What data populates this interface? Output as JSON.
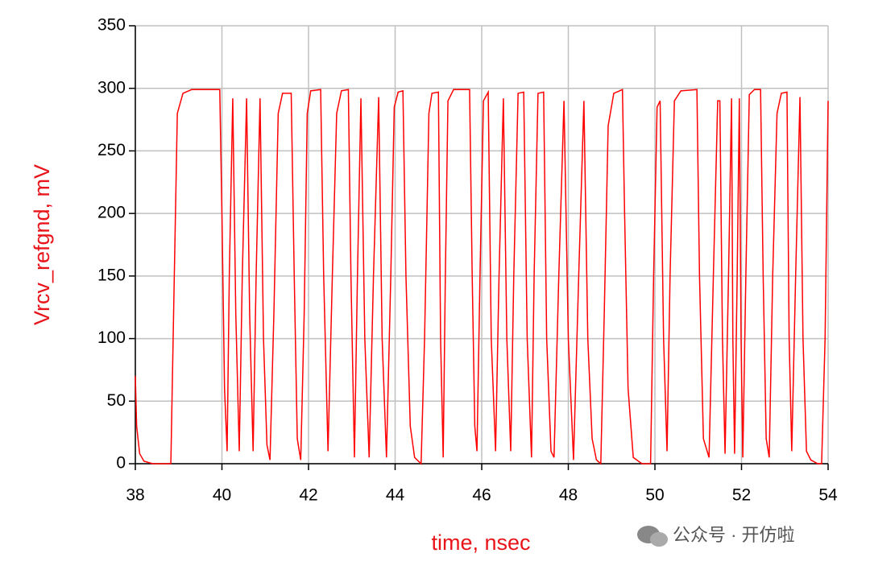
{
  "chart_data": {
    "type": "line",
    "xlabel": "time, nsec",
    "ylabel": "Vrcv_refgnd, mV",
    "watermark": "公众号 · 开仿啦",
    "xlim": [
      38,
      54
    ],
    "xticks": [
      38,
      40,
      42,
      44,
      46,
      48,
      50,
      52,
      54
    ],
    "ylim": [
      0,
      350
    ],
    "yticks": [
      0,
      50,
      100,
      150,
      200,
      250,
      300,
      350
    ],
    "grid": true,
    "series": [
      {
        "color": "#ff0000",
        "x": [
          38,
          38.03,
          38.1,
          38.2,
          38.4,
          38.82,
          38.9,
          38.97,
          39.1,
          39.3,
          39.95,
          40.0,
          40.06,
          40.12,
          40.17,
          40.25,
          40.32,
          40.4,
          40.47,
          40.57,
          40.64,
          40.72,
          40.79,
          40.88,
          40.96,
          41.04,
          41.11,
          41.2,
          41.3,
          41.4,
          41.6,
          41.67,
          41.74,
          41.82,
          41.9,
          41.97,
          42.05,
          42.28,
          42.35,
          42.45,
          42.55,
          42.65,
          42.76,
          42.92,
          42.98,
          43.06,
          43.13,
          43.21,
          43.3,
          43.4,
          43.5,
          43.62,
          43.7,
          43.8,
          43.9,
          43.98,
          44.07,
          44.18,
          44.25,
          44.35,
          44.45,
          44.6,
          44.68,
          44.78,
          44.85,
          45.0,
          45.05,
          45.11,
          45.16,
          45.22,
          45.35,
          45.72,
          45.78,
          45.84,
          45.89,
          45.96,
          46.04,
          46.15,
          46.22,
          46.32,
          46.4,
          46.5,
          46.58,
          46.67,
          46.74,
          46.84,
          46.97,
          47.05,
          47.15,
          47.21,
          47.3,
          47.43,
          47.5,
          47.6,
          47.67,
          47.78,
          47.9,
          48.0,
          48.12,
          48.24,
          48.36,
          48.45,
          48.55,
          48.65,
          48.75,
          48.83,
          48.92,
          49.05,
          49.25,
          49.3,
          49.38,
          49.5,
          49.7,
          49.9,
          49.97,
          50.05,
          50.12,
          50.2,
          50.28,
          50.35,
          50.45,
          50.6,
          50.97,
          51.03,
          51.12,
          51.25,
          51.35,
          51.45,
          51.5,
          51.56,
          51.62,
          51.7,
          51.77,
          51.8,
          51.84,
          51.9,
          51.95,
          51.99,
          52.03,
          52.1,
          52.18,
          52.3,
          52.44,
          52.5,
          52.57,
          52.64,
          52.72,
          52.82,
          52.92,
          53.05,
          53.1,
          53.16,
          53.25,
          53.35,
          53.42,
          53.5,
          53.6,
          53.76,
          53.85,
          53.93,
          54.0
        ],
        "values": [
          70,
          30,
          8,
          2,
          0,
          0,
          150,
          280,
          296,
          299,
          299,
          200,
          60,
          10,
          150,
          292,
          120,
          10,
          150,
          292,
          120,
          10,
          150,
          292,
          100,
          15,
          3,
          120,
          280,
          296,
          296,
          150,
          20,
          3,
          120,
          280,
          298,
          299,
          150,
          10,
          150,
          280,
          298,
          299,
          150,
          5,
          150,
          292,
          100,
          5,
          150,
          293,
          100,
          5,
          150,
          285,
          297,
          298,
          150,
          30,
          5,
          0,
          100,
          280,
          296,
          297,
          100,
          5,
          150,
          290,
          299,
          299,
          150,
          30,
          10,
          150,
          290,
          297,
          100,
          10,
          150,
          292,
          100,
          10,
          150,
          296,
          297,
          100,
          5,
          150,
          296,
          297,
          100,
          10,
          5,
          150,
          290,
          100,
          3,
          150,
          290,
          100,
          20,
          3,
          0,
          120,
          270,
          296,
          299,
          200,
          60,
          5,
          0,
          0,
          150,
          285,
          290,
          100,
          10,
          150,
          290,
          298,
          299,
          150,
          20,
          5,
          150,
          290,
          290,
          100,
          8,
          150,
          292,
          100,
          8,
          150,
          292,
          100,
          5,
          150,
          295,
          299,
          299,
          150,
          20,
          5,
          150,
          280,
          296,
          297,
          100,
          10,
          150,
          293,
          100,
          10,
          3,
          0,
          0,
          100,
          290
        ]
      }
    ]
  }
}
